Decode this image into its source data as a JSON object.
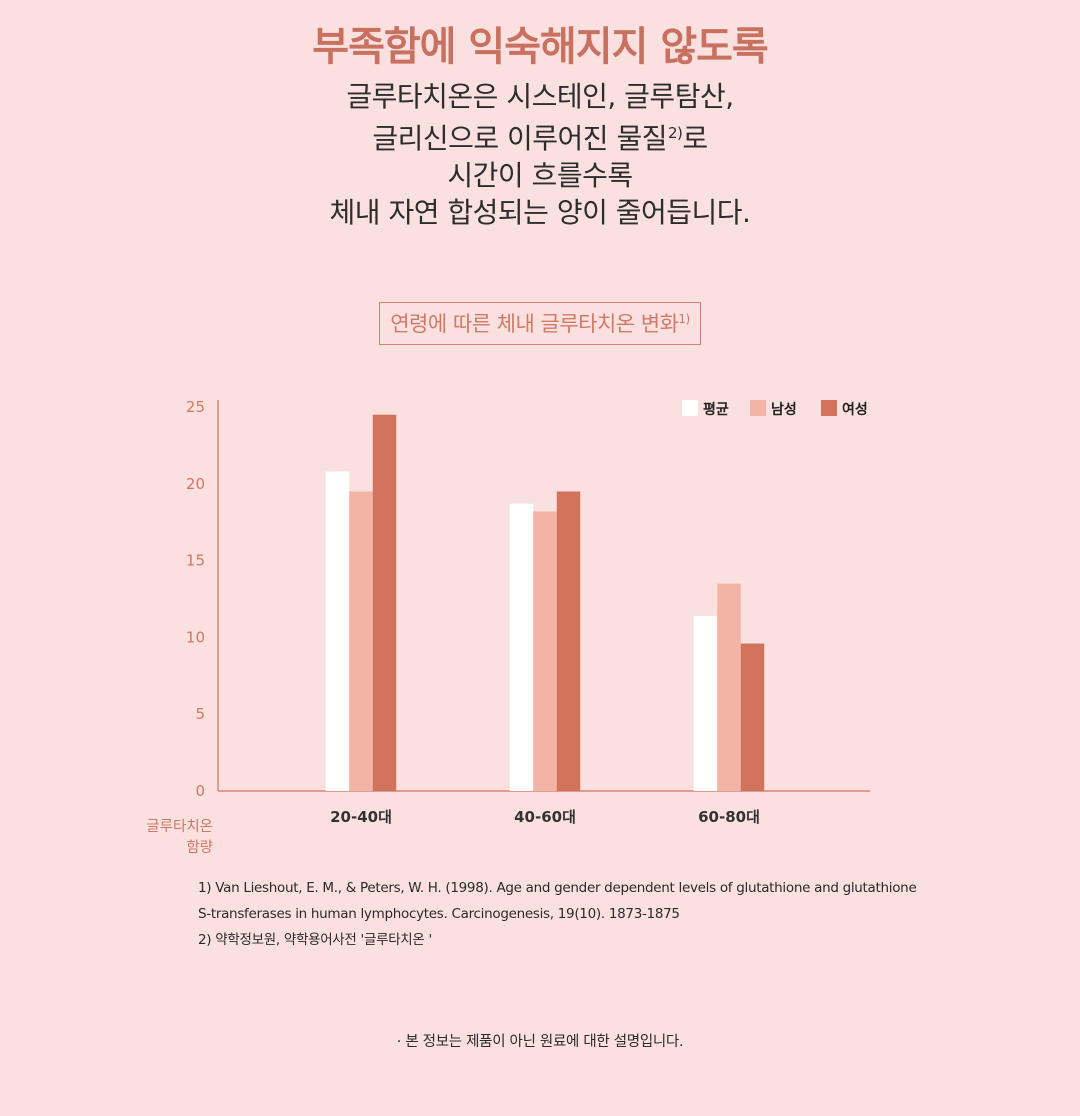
{
  "headline": "부족함에 익숙해지지 않도록",
  "intro": {
    "line1": "글루타치온은 시스테인, 글루탐산,",
    "line2": "글리신으로 이루어진 물질",
    "line2_sup": "2)",
    "line2_end": "로",
    "line3": "시간이 흐를수록",
    "line4": "체내 자연 합성되는 양이 줄어듭니다."
  },
  "chart_title": {
    "text": "연령에 따른 체내 글루타치온 변화",
    "sup": "1)"
  },
  "chart_data": {
    "type": "bar",
    "categories": [
      "20-40대",
      "40-60대",
      "60-80대"
    ],
    "series": [
      {
        "name": "평균",
        "color": "#ffffff",
        "values": [
          20.8,
          18.7,
          11.4
        ]
      },
      {
        "name": "남성",
        "color": "#f3b4a6",
        "values": [
          19.5,
          18.2,
          13.5
        ]
      },
      {
        "name": "여성",
        "color": "#d2735e",
        "values": [
          24.5,
          19.5,
          9.6
        ]
      }
    ],
    "ylim": [
      0,
      25
    ],
    "yticks": [
      0,
      5,
      10,
      15,
      20,
      25
    ],
    "ylabel": "글루타치온 함량",
    "ylabel_line1": "글루타치온",
    "ylabel_line2": "함량",
    "xlabel": "",
    "legend_position": "top-right",
    "grid": false,
    "axis_color": "#d28676"
  },
  "references": {
    "ref1_line1": "1) Van Lieshout, E. M., & Peters, W. H. (1998). Age and gender dependent levels of glutathione and glutathione",
    "ref1_line2": "S-transferases in human lymphocytes. Carcinogenesis, 19(10). 1873-1875",
    "ref2": "2) 약학정보원, 약학용어사전 '글루타치온 '"
  },
  "notice": "· 본 정보는 제품이 아닌 원료에 대한 설명입니다."
}
